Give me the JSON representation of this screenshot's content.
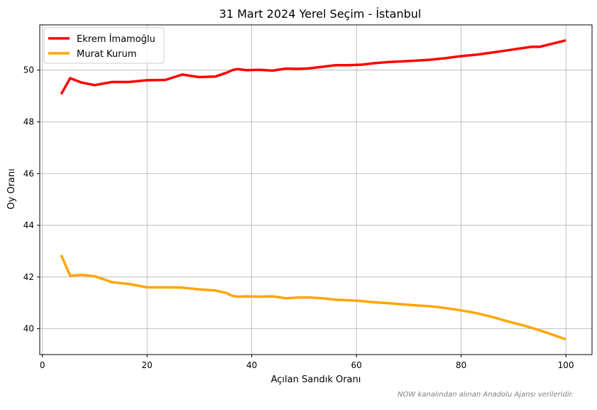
{
  "footnote": "NOW kanalından alınan Anadolu Ajansı verileridir.",
  "chart_data": {
    "type": "line",
    "title": "31 Mart 2024 Yerel Seçim - İstanbul",
    "xlabel": "Açılan Sandık Oranı",
    "ylabel": "Oy Oranı",
    "xlim": [
      -0.5,
      105
    ],
    "ylim": [
      39.0,
      51.75
    ],
    "xticks": [
      0,
      20,
      40,
      60,
      80,
      100
    ],
    "yticks": [
      40,
      42,
      44,
      46,
      48,
      50
    ],
    "grid": true,
    "legend_position": "top-left",
    "series": [
      {
        "name": "Ekrem İmamoğlu",
        "color": "#ff0000",
        "x": [
          3.6,
          5.3,
          7.5,
          10.0,
          13.3,
          16.5,
          20.0,
          23.5,
          26.7,
          29.9,
          33.0,
          35.2,
          36.3,
          37.3,
          39.0,
          41.5,
          44.0,
          46.5,
          49.0,
          51.0,
          53.5,
          56.0,
          58.5,
          61.0,
          63.5,
          66.0,
          69.0,
          71.5,
          74.0,
          77.0,
          80.0,
          83.0,
          86.0,
          89.0,
          92.0,
          93.5,
          95.0,
          100.0
        ],
        "y": [
          49.07,
          49.69,
          49.52,
          49.42,
          49.54,
          49.54,
          49.61,
          49.62,
          49.83,
          49.73,
          49.75,
          49.9,
          50.0,
          50.04,
          50.0,
          50.01,
          49.98,
          50.06,
          50.05,
          50.07,
          50.13,
          50.19,
          50.19,
          50.21,
          50.27,
          50.31,
          50.34,
          50.37,
          50.4,
          50.46,
          50.54,
          50.6,
          50.68,
          50.77,
          50.86,
          50.9,
          50.9,
          51.15
        ]
      },
      {
        "name": "Murat Kurum",
        "color": "#ffa500",
        "x": [
          3.6,
          5.3,
          7.5,
          10.0,
          13.3,
          16.5,
          20.0,
          23.5,
          26.7,
          29.9,
          33.0,
          35.2,
          36.3,
          37.3,
          39.0,
          41.5,
          44.0,
          46.5,
          49.0,
          51.0,
          53.5,
          56.0,
          58.5,
          61.0,
          63.5,
          66.0,
          69.0,
          71.5,
          74.0,
          77.0,
          80.0,
          83.0,
          86.0,
          89.0,
          92.0,
          93.5,
          95.0,
          100.0
        ],
        "y": [
          42.85,
          42.05,
          42.08,
          42.03,
          41.8,
          41.73,
          41.6,
          41.6,
          41.59,
          41.52,
          41.48,
          41.38,
          41.27,
          41.24,
          41.25,
          41.24,
          41.25,
          41.18,
          41.21,
          41.21,
          41.18,
          41.12,
          41.1,
          41.07,
          41.02,
          40.99,
          40.94,
          40.9,
          40.87,
          40.8,
          40.71,
          40.6,
          40.45,
          40.28,
          40.12,
          40.03,
          39.94,
          39.59
        ]
      }
    ]
  }
}
